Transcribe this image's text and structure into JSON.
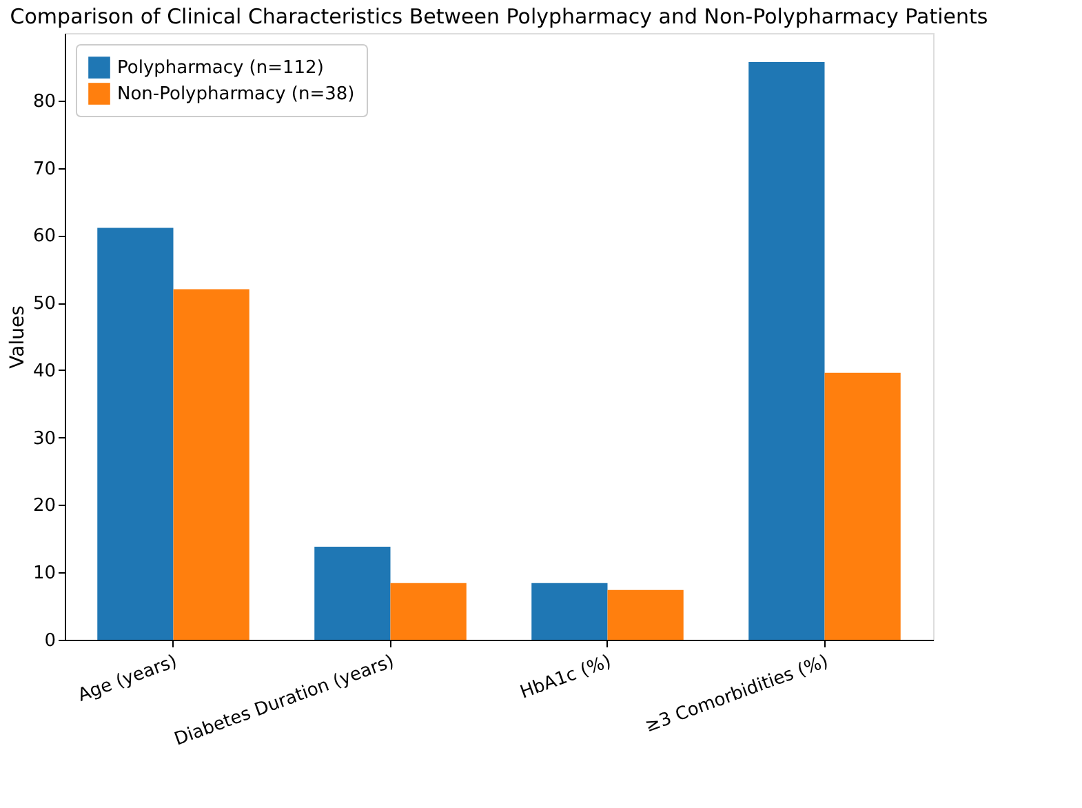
{
  "chart_data": {
    "type": "bar",
    "title": "Comparison of Clinical Characteristics Between Polypharmacy and Non-Polypharmacy Patients",
    "ylabel": "Values",
    "categories": [
      "Age (years)",
      "Diabetes Duration (years)",
      "HbA1c (%)",
      "≥3 Comorbidities (%)"
    ],
    "series": [
      {
        "name": "Polypharmacy (n=112)",
        "color": "#1f77b4",
        "values": [
          61.1,
          13.8,
          8.4,
          85.7
        ]
      },
      {
        "name": "Non-Polypharmacy (n=38)",
        "color": "#ff7f0e",
        "values": [
          52.0,
          8.4,
          7.4,
          39.6
        ]
      }
    ],
    "ylim": [
      0,
      90
    ],
    "yticks": [
      0,
      10,
      20,
      30,
      40,
      50,
      60,
      70,
      80
    ],
    "grid": false,
    "legend": "top left"
  }
}
